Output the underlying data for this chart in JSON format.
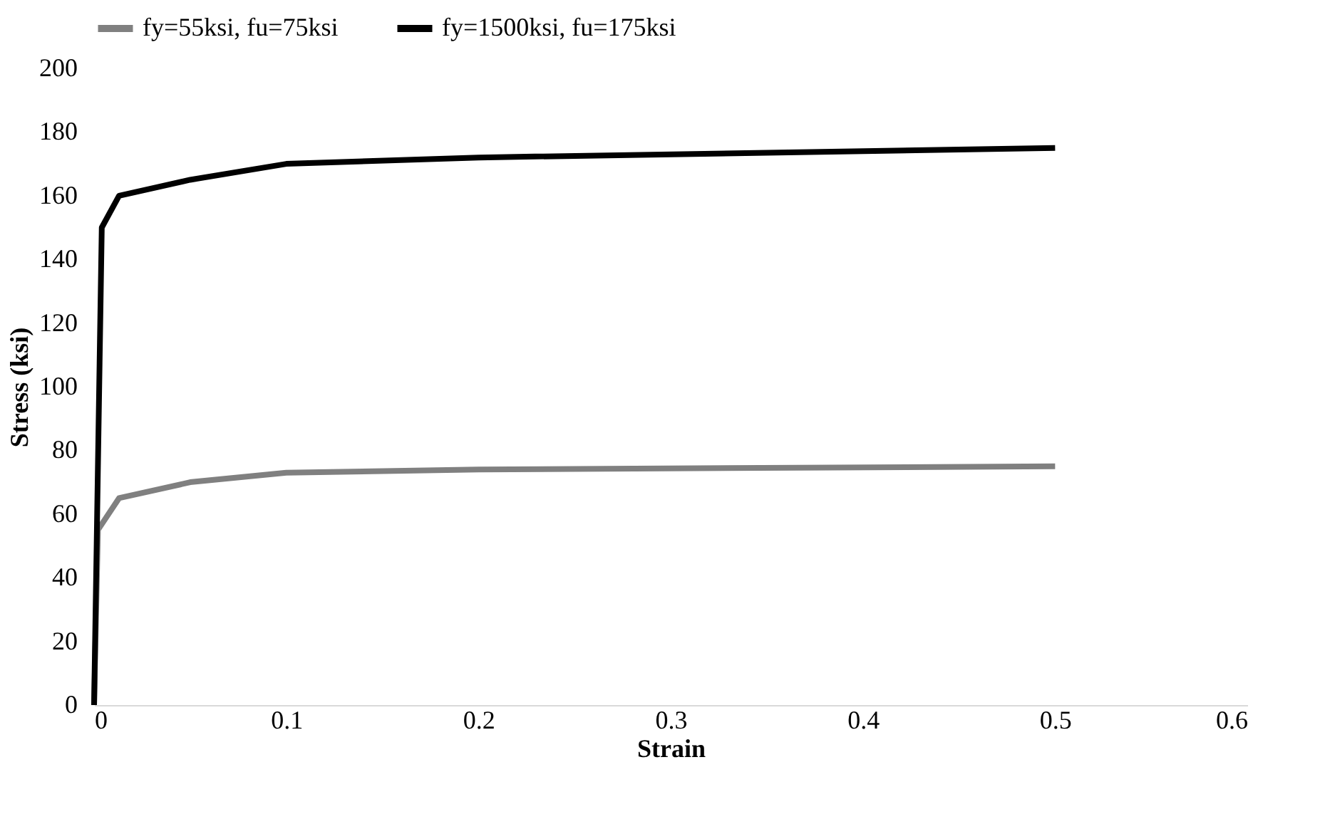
{
  "chart_data": {
    "type": "line",
    "xlabel": "Strain",
    "ylabel": "Stress (ksi)",
    "xlim": [
      0,
      0.6
    ],
    "xticks": [
      0,
      0.1,
      0.2,
      0.3,
      0.4,
      0.5,
      0.6
    ],
    "ylim": [
      0,
      200
    ],
    "yticks": [
      0,
      20,
      40,
      60,
      80,
      100,
      120,
      140,
      160,
      180,
      200
    ],
    "grid": false,
    "legend": "top",
    "marker": "none",
    "line_style": "solid",
    "series": [
      {
        "name": "fy=55ksi, fu=75ksi",
        "color": "#808080",
        "x": [
          0,
          0.002,
          0.013,
          0.05,
          0.1,
          0.2,
          0.5
        ],
        "values": [
          0,
          55,
          65,
          70,
          73,
          74,
          75
        ]
      },
      {
        "name": "fy=1500ksi, fu=175ksi",
        "color": "#000000",
        "x": [
          0,
          0.004,
          0.013,
          0.05,
          0.1,
          0.2,
          0.5
        ],
        "values": [
          0,
          150,
          160,
          165,
          170,
          172,
          175
        ]
      }
    ]
  }
}
